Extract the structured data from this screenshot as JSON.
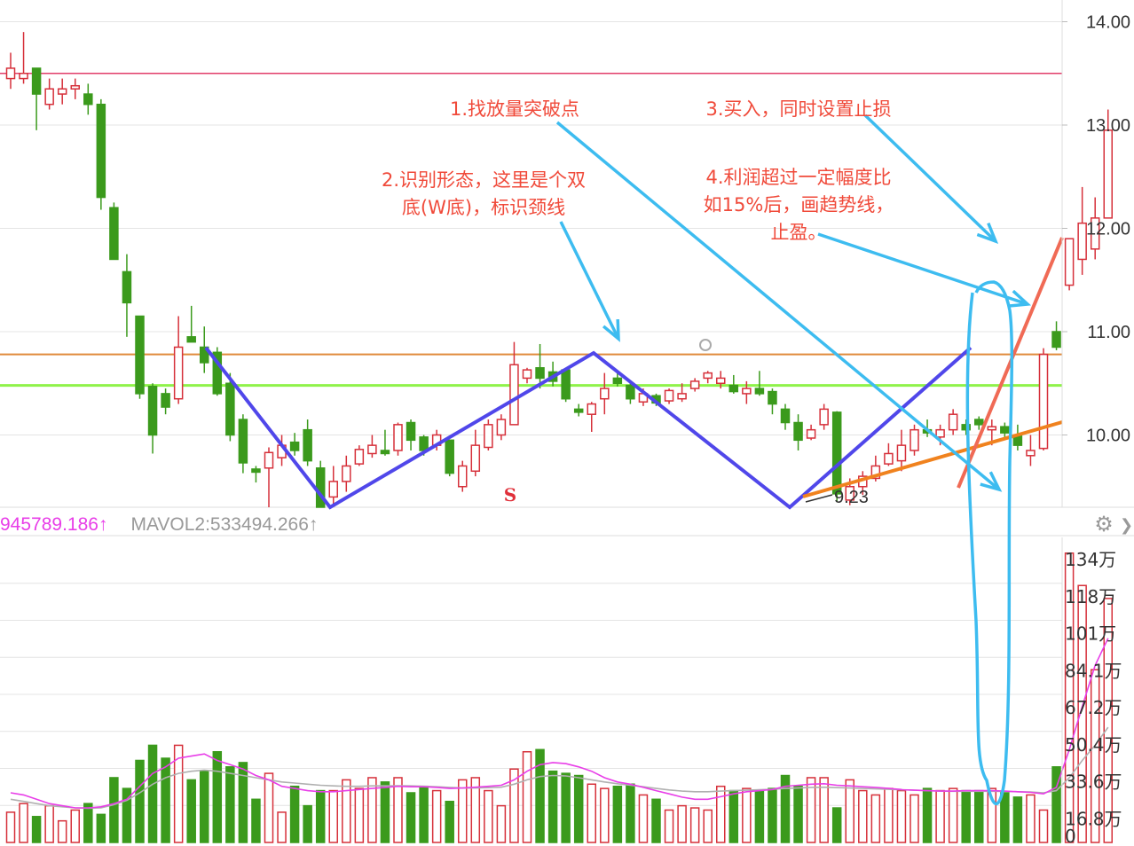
{
  "colors": {
    "up": "#d6303a",
    "down": "#3b9a1c",
    "grid": "#e4e4e4",
    "resistance_line": "#e23c6a",
    "neckline_orange": "#e08a3a",
    "neckline_green": "#8ff24a",
    "w_pattern": "#5047ea",
    "arrow": "#3dbcf0",
    "trend_red": "#f06a55",
    "trend_orange": "#f0821e",
    "ma_vol1": "#e83ee8",
    "ma_vol2": "#b0b0b0",
    "annotation_text": "#f04a3a"
  },
  "volume_legend": {
    "ma1_text": "945789.186↑",
    "ma2_text": "MAVOL2:533494.266↑"
  },
  "annotations": [
    {
      "id": "step1",
      "text": "1.找放量突破点"
    },
    {
      "id": "step2",
      "text": "2.识别形态，这里是个双\n底(W底)，标识颈线"
    },
    {
      "id": "step3",
      "text": "3.买入，同时设置止损"
    },
    {
      "id": "step4",
      "text": "4.利润超过一定幅度比\n如15%后，画趋势线，\n止盈。"
    }
  ],
  "icons": {
    "settings": "gear-icon",
    "more": "chevron-right-icon"
  },
  "chart_data": [
    {
      "type": "candlestick",
      "y_ticks": [
        "14.00",
        "13.00",
        "12.00",
        "11.00",
        "10.00"
      ],
      "ylim": [
        9.2,
        14.1
      ],
      "horizontal_lines": [
        {
          "name": "resistance",
          "value": 13.5
        },
        {
          "name": "neck-orange",
          "value": 10.78
        },
        {
          "name": "neck-green",
          "value": 10.48
        }
      ],
      "annotations": [
        {
          "text": "9.23",
          "note": "low marker"
        },
        {
          "text": "S",
          "note": "signal marker"
        }
      ],
      "candles": [
        [
          13.45,
          13.55,
          13.7,
          13.35
        ],
        [
          13.45,
          13.5,
          13.9,
          13.4
        ],
        [
          13.55,
          13.3,
          13.55,
          12.95
        ],
        [
          13.2,
          13.35,
          13.45,
          13.15
        ],
        [
          13.3,
          13.35,
          13.45,
          13.2
        ],
        [
          13.35,
          13.38,
          13.45,
          13.25
        ],
        [
          13.3,
          13.2,
          13.4,
          13.1
        ],
        [
          13.2,
          12.3,
          13.25,
          12.18
        ],
        [
          12.2,
          11.7,
          12.25,
          11.7
        ],
        [
          11.58,
          11.28,
          11.75,
          10.95
        ],
        [
          11.15,
          10.4,
          11.15,
          10.35
        ],
        [
          10.47,
          10.0,
          10.5,
          9.82
        ],
        [
          10.4,
          10.27,
          10.45,
          10.2
        ],
        [
          10.35,
          10.85,
          11.15,
          10.3
        ],
        [
          10.95,
          10.9,
          11.25,
          10.9
        ],
        [
          10.85,
          10.7,
          11.05,
          10.6
        ],
        [
          10.8,
          10.4,
          10.85,
          10.38
        ],
        [
          10.5,
          10.0,
          10.6,
          9.94
        ],
        [
          10.15,
          9.73,
          10.2,
          9.63
        ],
        [
          9.67,
          9.64,
          9.7,
          9.54
        ],
        [
          9.68,
          9.83,
          9.88,
          9.25
        ],
        [
          9.78,
          9.9,
          10.0,
          9.7
        ],
        [
          9.93,
          9.85,
          10.02,
          9.8
        ],
        [
          10.05,
          9.75,
          10.15,
          9.7
        ],
        [
          9.68,
          9.3,
          9.75,
          9.25
        ],
        [
          9.4,
          9.55,
          9.7,
          9.3
        ],
        [
          9.55,
          9.7,
          9.8,
          9.45
        ],
        [
          9.72,
          9.86,
          9.9,
          9.7
        ],
        [
          9.82,
          9.9,
          10.0,
          9.78
        ],
        [
          9.85,
          9.82,
          10.05,
          9.8
        ],
        [
          9.85,
          10.1,
          10.12,
          9.8
        ],
        [
          10.12,
          9.95,
          10.15,
          9.85
        ],
        [
          9.98,
          9.85,
          10.0,
          9.8
        ],
        [
          9.9,
          10.0,
          10.05,
          9.85
        ],
        [
          9.95,
          9.63,
          9.95,
          9.6
        ],
        [
          9.5,
          9.7,
          9.75,
          9.45
        ],
        [
          9.65,
          9.9,
          10.05,
          9.6
        ],
        [
          9.88,
          10.1,
          10.15,
          9.85
        ],
        [
          10.0,
          10.15,
          10.2,
          9.95
        ],
        [
          10.1,
          10.68,
          10.9,
          10.1
        ],
        [
          10.55,
          10.63,
          10.65,
          10.5
        ],
        [
          10.65,
          10.55,
          10.88,
          10.45
        ],
        [
          10.61,
          10.52,
          10.71,
          10.47
        ],
        [
          10.63,
          10.35,
          10.65,
          10.32
        ],
        [
          10.25,
          10.22,
          10.3,
          10.18
        ],
        [
          10.2,
          10.3,
          10.32,
          10.03
        ],
        [
          10.35,
          10.45,
          10.6,
          10.2
        ],
        [
          10.55,
          10.5,
          10.6,
          10.47
        ],
        [
          10.48,
          10.35,
          10.5,
          10.3
        ],
        [
          10.32,
          10.4,
          10.45,
          10.28
        ],
        [
          10.38,
          10.31,
          10.4,
          10.28
        ],
        [
          10.33,
          10.43,
          10.45,
          10.3
        ],
        [
          10.35,
          10.4,
          10.5,
          10.32
        ],
        [
          10.45,
          10.52,
          10.55,
          10.42
        ],
        [
          10.55,
          10.6,
          10.62,
          10.5
        ],
        [
          10.5,
          10.55,
          10.62,
          10.45
        ],
        [
          10.48,
          10.42,
          10.58,
          10.4
        ],
        [
          10.4,
          10.45,
          10.52,
          10.3
        ],
        [
          10.45,
          10.4,
          10.62,
          10.38
        ],
        [
          10.42,
          10.3,
          10.45,
          10.2
        ],
        [
          10.25,
          10.12,
          10.3,
          10.05
        ],
        [
          10.12,
          9.95,
          10.2,
          9.85
        ],
        [
          9.97,
          10.05,
          10.1,
          9.95
        ],
        [
          10.1,
          10.25,
          10.3,
          10.05
        ],
        [
          10.22,
          9.43,
          10.23,
          9.35
        ],
        [
          9.37,
          9.5,
          9.58,
          9.32
        ],
        [
          9.5,
          9.6,
          9.65,
          9.42
        ],
        [
          9.58,
          9.7,
          9.8,
          9.55
        ],
        [
          9.72,
          9.82,
          9.92,
          9.7
        ],
        [
          9.75,
          9.9,
          10.05,
          9.65
        ],
        [
          9.85,
          10.05,
          10.1,
          9.8
        ],
        [
          10.05,
          10.02,
          10.15,
          9.98
        ],
        [
          9.98,
          10.05,
          10.1,
          9.9
        ],
        [
          10.05,
          10.2,
          10.25,
          10.0
        ],
        [
          10.1,
          10.05,
          10.15,
          10.0
        ],
        [
          10.15,
          10.1,
          10.18,
          10.05
        ],
        [
          10.05,
          10.08,
          10.15,
          9.9
        ],
        [
          10.08,
          10.02,
          10.12,
          9.97
        ],
        [
          10.0,
          9.9,
          10.1,
          9.85
        ],
        [
          9.8,
          9.85,
          10.0,
          9.7
        ],
        [
          9.87,
          10.78,
          10.84,
          9.85
        ],
        [
          11.0,
          10.85,
          11.1,
          10.82
        ],
        [
          11.45,
          11.9,
          11.9,
          11.4
        ],
        [
          11.7,
          12.05,
          12.4,
          11.55
        ],
        [
          11.8,
          12.1,
          12.3,
          11.7
        ],
        [
          12.1,
          12.95,
          13.15,
          12.1
        ]
      ]
    },
    {
      "type": "bar",
      "title": "volume",
      "y_ticks": [
        "134万",
        "118万",
        "101万",
        "84.1万",
        "67.2万",
        "50.4万",
        "33.6万",
        "16.8万",
        "0"
      ],
      "ylim": [
        0,
        1380000
      ],
      "series": [
        {
          "name": "MAVOL1",
          "value_label": "945789.186"
        },
        {
          "name": "MAVOL2",
          "value_label": "533494.266"
        }
      ],
      "values": [
        140000,
        180000,
        120000,
        170000,
        100000,
        150000,
        180000,
        130000,
        300000,
        250000,
        380000,
        450000,
        390000,
        450000,
        290000,
        330000,
        420000,
        350000,
        370000,
        200000,
        320000,
        140000,
        260000,
        170000,
        240000,
        240000,
        290000,
        250000,
        300000,
        280000,
        300000,
        230000,
        260000,
        240000,
        190000,
        290000,
        300000,
        240000,
        170000,
        340000,
        420000,
        430000,
        330000,
        320000,
        310000,
        270000,
        250000,
        260000,
        270000,
        220000,
        200000,
        150000,
        170000,
        160000,
        150000,
        260000,
        240000,
        250000,
        240000,
        250000,
        310000,
        260000,
        300000,
        300000,
        160000,
        290000,
        240000,
        220000,
        250000,
        240000,
        220000,
        250000,
        240000,
        250000,
        240000,
        240000,
        250000,
        230000,
        210000,
        220000,
        150000,
        350000,
        1340000,
        1190000,
        800000,
        1130000
      ],
      "mavol1": [
        230000,
        220000,
        200000,
        180000,
        170000,
        160000,
        160000,
        165000,
        180000,
        200000,
        260000,
        320000,
        350000,
        390000,
        400000,
        410000,
        380000,
        360000,
        340000,
        310000,
        290000,
        260000,
        250000,
        240000,
        235000,
        235000,
        240000,
        245000,
        250000,
        255000,
        260000,
        258000,
        258000,
        255000,
        250000,
        252000,
        256000,
        260000,
        265000,
        290000,
        330000,
        360000,
        370000,
        365000,
        350000,
        330000,
        300000,
        280000,
        270000,
        255000,
        240000,
        225000,
        210000,
        200000,
        200000,
        212000,
        225000,
        235000,
        240000,
        245000,
        260000,
        265000,
        270000,
        272000,
        265000,
        262000,
        258000,
        255000,
        250000,
        245000,
        242000,
        240000,
        238000,
        238000,
        240000,
        240000,
        240000,
        238000,
        235000,
        232000,
        225000,
        255000,
        430000,
        630000,
        820000,
        945789
      ],
      "mavol2": [
        200000,
        190000,
        180000,
        170000,
        165000,
        160000,
        158000,
        160000,
        175000,
        195000,
        230000,
        270000,
        300000,
        320000,
        330000,
        335000,
        330000,
        320000,
        310000,
        300000,
        290000,
        280000,
        275000,
        270000,
        265000,
        262000,
        260000,
        260000,
        262000,
        262000,
        263000,
        262000,
        260000,
        258000,
        255000,
        252000,
        252000,
        254000,
        256000,
        270000,
        290000,
        305000,
        310000,
        308000,
        300000,
        290000,
        280000,
        272000,
        265000,
        258000,
        250000,
        243000,
        238000,
        235000,
        235000,
        238000,
        240000,
        242000,
        244000,
        246000,
        250000,
        252000,
        255000,
        256000,
        254000,
        252000,
        250000,
        248000,
        246000,
        244000,
        242000,
        240000,
        238000,
        237000,
        237000,
        237000,
        237000,
        236000,
        235000,
        234000,
        230000,
        240000,
        300000,
        380000,
        450000,
        533494
      ]
    }
  ]
}
